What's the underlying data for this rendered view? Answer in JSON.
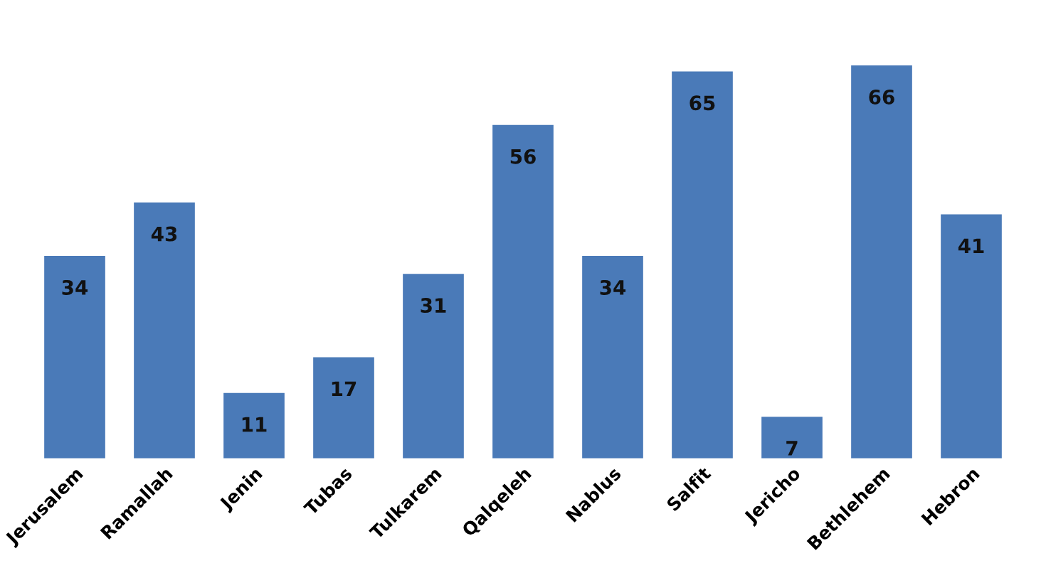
{
  "chart_data": {
    "type": "bar",
    "categories": [
      "Jerusalem",
      "Ramallah",
      "Jenin",
      "Tubas",
      "Tulkarem",
      "Qalqeleh",
      "Nablus",
      "Salfit",
      "Jericho",
      "Bethlehem",
      "Hebron"
    ],
    "values": [
      34,
      43,
      11,
      17,
      31,
      56,
      34,
      65,
      7,
      66,
      41
    ],
    "color": "#4a7ab8",
    "data_labels": true,
    "grid": false,
    "legend": false
  }
}
